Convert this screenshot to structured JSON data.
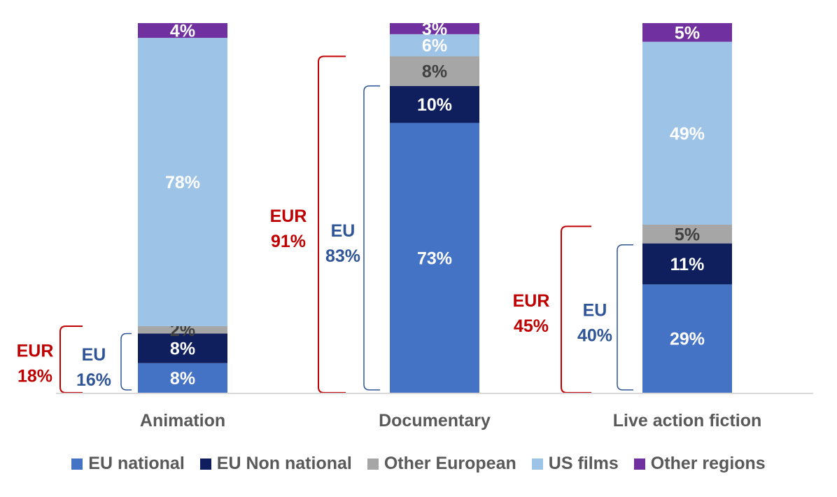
{
  "chart_data": {
    "type": "bar",
    "stacked": true,
    "categories": [
      "Animation",
      "Documentary",
      "Live action fiction"
    ],
    "ylim": [
      0,
      100
    ],
    "series": [
      {
        "name": "EU national",
        "color": "#4472C4",
        "label_color": "#FFFFFF",
        "values": [
          8,
          73,
          29
        ],
        "labels": [
          "8%",
          "73%",
          "29%"
        ]
      },
      {
        "name": "EU Non national",
        "color": "#0F1F5E",
        "label_color": "#FFFFFF",
        "values": [
          8,
          10,
          11
        ],
        "labels": [
          "8%",
          "10%",
          "11%"
        ]
      },
      {
        "name": "Other European",
        "color": "#A6A6A6",
        "label_color": "#404040",
        "values": [
          2,
          8,
          5
        ],
        "labels": [
          "2%",
          "8%",
          "5%"
        ]
      },
      {
        "name": "US films",
        "color": "#9DC3E6",
        "label_color": "#FFFFFF",
        "values": [
          78,
          6,
          49
        ],
        "labels": [
          "78%",
          "6%",
          "49%"
        ]
      },
      {
        "name": "Other regions",
        "color": "#7030A0",
        "label_color": "#FFFFFF",
        "values": [
          4,
          3,
          5
        ],
        "labels": [
          "4%",
          "3%",
          "5%"
        ]
      }
    ],
    "annotations": [
      {
        "category": 0,
        "eur_line1": "EUR",
        "eur_line2": "18%",
        "eu_line1": "EU",
        "eu_line2": "16%",
        "eur_value": 18,
        "eu_value": 16
      },
      {
        "category": 1,
        "eur_line1": "EUR",
        "eur_line2": "91%",
        "eu_line1": "EU",
        "eu_line2": "83%",
        "eur_value": 91,
        "eu_value": 83
      },
      {
        "category": 2,
        "eur_line1": "EUR",
        "eur_line2": "45%",
        "eu_line1": "EU",
        "eu_line2": "40%",
        "eur_value": 45,
        "eu_value": 40
      }
    ],
    "eur_color": "#C00000",
    "eu_color": "#2F5597",
    "legend_position": "bottom",
    "grid": false
  }
}
